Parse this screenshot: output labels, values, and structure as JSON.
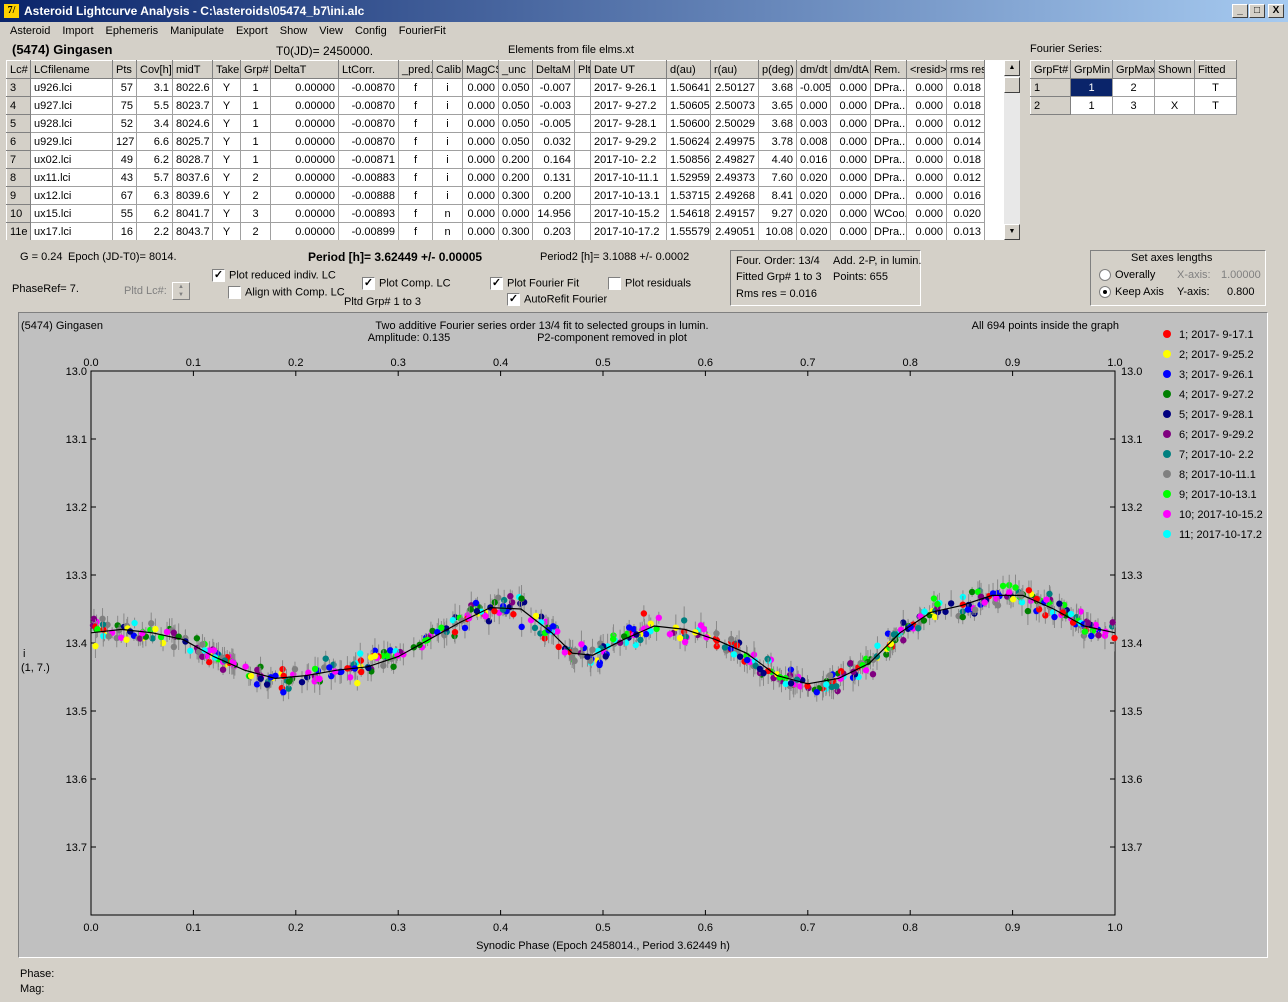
{
  "window": {
    "title": "Asteroid Lightcurve Analysis - C:\\asteroids\\05474_b7\\ini.alc",
    "icon_label": "7/",
    "minimize": "_",
    "maximize": "□",
    "close": "X"
  },
  "menu": [
    "Asteroid",
    "Import",
    "Ephemeris",
    "Manipulate",
    "Export",
    "Show",
    "View",
    "Config",
    "FourierFit"
  ],
  "header": {
    "asteroid": "(5474) Gingasen",
    "t0": "T0(JD)= 2450000.",
    "elements": "Elements from file elms.xt"
  },
  "lc_table": {
    "columns": [
      "Lc#",
      "LCfilename",
      "Pts",
      "Cov[h]",
      "midT",
      "Take",
      "Grp#",
      "DeltaT",
      "LtCorr.",
      "_pred.",
      "Calib.",
      "MagCS",
      "_unc",
      "DeltaM",
      "Plt",
      "Date UT",
      "d(au)",
      "r(au)",
      "p(deg)",
      "dm/dt",
      "dm/dtA",
      "Rem.",
      "<resid>",
      "rms res"
    ],
    "rows": [
      [
        "3",
        "u926.lci",
        "57",
        "3.1",
        "8022.6",
        "Y",
        "1",
        "0.00000",
        "-0.00870",
        "f",
        "i",
        "0.000",
        "0.050",
        "-0.007",
        "",
        "2017- 9-26.1",
        "1.50641",
        "2.50127",
        "3.68",
        "-0.005",
        "0.000",
        "DPra...",
        "0.000",
        "0.018"
      ],
      [
        "4",
        "u927.lci",
        "75",
        "5.5",
        "8023.7",
        "Y",
        "1",
        "0.00000",
        "-0.00870",
        "f",
        "i",
        "0.000",
        "0.050",
        "-0.003",
        "",
        "2017- 9-27.2",
        "1.50605",
        "2.50073",
        "3.65",
        "0.000",
        "0.000",
        "DPra...",
        "0.000",
        "0.018"
      ],
      [
        "5",
        "u928.lci",
        "52",
        "3.4",
        "8024.6",
        "Y",
        "1",
        "0.00000",
        "-0.00870",
        "f",
        "i",
        "0.000",
        "0.050",
        "-0.005",
        "",
        "2017- 9-28.1",
        "1.50600",
        "2.50029",
        "3.68",
        "0.003",
        "0.000",
        "DPra...",
        "0.000",
        "0.012"
      ],
      [
        "6",
        "u929.lci",
        "127",
        "6.6",
        "8025.7",
        "Y",
        "1",
        "0.00000",
        "-0.00870",
        "f",
        "i",
        "0.000",
        "0.050",
        "0.032",
        "",
        "2017- 9-29.2",
        "1.50624",
        "2.49975",
        "3.78",
        "0.008",
        "0.000",
        "DPra...",
        "0.000",
        "0.014"
      ],
      [
        "7",
        "ux02.lci",
        "49",
        "6.2",
        "8028.7",
        "Y",
        "1",
        "0.00000",
        "-0.00871",
        "f",
        "i",
        "0.000",
        "0.200",
        "0.164",
        "",
        "2017-10- 2.2",
        "1.50856",
        "2.49827",
        "4.40",
        "0.016",
        "0.000",
        "DPra...",
        "0.000",
        "0.018"
      ],
      [
        "8",
        "ux11.lci",
        "43",
        "5.7",
        "8037.6",
        "Y",
        "2",
        "0.00000",
        "-0.00883",
        "f",
        "i",
        "0.000",
        "0.200",
        "0.131",
        "",
        "2017-10-11.1",
        "1.52959",
        "2.49373",
        "7.60",
        "0.020",
        "0.000",
        "DPra...",
        "0.000",
        "0.012"
      ],
      [
        "9",
        "ux12.lci",
        "67",
        "6.3",
        "8039.6",
        "Y",
        "2",
        "0.00000",
        "-0.00888",
        "f",
        "i",
        "0.000",
        "0.300",
        "0.200",
        "",
        "2017-10-13.1",
        "1.53715",
        "2.49268",
        "8.41",
        "0.020",
        "0.000",
        "DPra...",
        "0.000",
        "0.016"
      ],
      [
        "10",
        "ux15.lci",
        "55",
        "6.2",
        "8041.7",
        "Y",
        "3",
        "0.00000",
        "-0.00893",
        "f",
        "n",
        "0.000",
        "0.000",
        "14.956",
        "",
        "2017-10-15.2",
        "1.54618",
        "2.49157",
        "9.27",
        "0.020",
        "0.000",
        "WCoo...",
        "0.000",
        "0.020"
      ],
      [
        "11e",
        "ux17.lci",
        "16",
        "2.2",
        "8043.7",
        "Y",
        "2",
        "0.00000",
        "-0.00899",
        "f",
        "n",
        "0.000",
        "0.300",
        "0.203",
        "",
        "2017-10-17.2",
        "1.55579",
        "2.49051",
        "10.08",
        "0.020",
        "0.000",
        "DPra...",
        "0.000",
        "0.013"
      ]
    ]
  },
  "fourier_series": {
    "label": "Fourier Series:",
    "columns": [
      "GrpFt#",
      "GrpMin",
      "GrpMax",
      "Shown",
      "Fitted"
    ],
    "rows": [
      [
        "1",
        "1",
        "2",
        "",
        "T"
      ],
      [
        "2",
        "1",
        "3",
        "X",
        "T"
      ]
    ]
  },
  "controls": {
    "g": "G = 0.24",
    "epoch": "Epoch (JD-T0)= 8014.",
    "phaseref": "PhaseRef= 7.",
    "pltd_lc": "Pltd Lc#:",
    "period": "Period [h]= 3.62449 +/- 0.00005",
    "period2": "Period2 [h]= 3.1088 +/- 0.0002",
    "plot_reduced": "Plot reduced indiv. LC",
    "align_comp": "Align with Comp. LC",
    "plot_comp": "Plot Comp. LC",
    "pltd_grp": "Pltd Grp#  1   to   3",
    "plot_fourier": "Plot Fourier Fit",
    "autorefit": "AutoRefit Fourier",
    "plot_resid": "Plot residuals",
    "four_order": "Four. Order: 13/4",
    "add2p": "Add. 2-P, in lumin.",
    "fitted_grp": "Fitted Grp# 1 to 3",
    "points": "Points: 655",
    "rms": "Rms res     = 0.016",
    "axes_title": "Set axes lengths",
    "overally": "Overally",
    "keep_axis": "Keep Axis",
    "xaxis_label": "X-axis:",
    "xaxis_val": "1.00000",
    "yaxis_label": "Y-axis:",
    "yaxis_val": "0.800"
  },
  "plot": {
    "name": "(5474) Gingasen",
    "subtitle1": "Two additive Fourier series order 13/4 fit to selected groups in lumin.",
    "subtitle2": "Amplitude: 0.135",
    "subtitle3": "P2-component removed in plot",
    "inside": "All 694 points inside the graph",
    "ylabel1": "i",
    "ylabel2": "(1, 7.)"
  },
  "status": {
    "phase": "Phase:",
    "mag": "Mag:"
  },
  "chart_data": {
    "type": "scatter",
    "xlabel": "Synodic Phase (Epoch 2458014., Period 3.62449 h)",
    "xlim": [
      0,
      1
    ],
    "ylim": [
      13.0,
      13.8
    ],
    "y_inverted": true,
    "x_ticks": [
      "0.0",
      "0.1",
      "0.2",
      "0.3",
      "0.4",
      "0.5",
      "0.6",
      "0.7",
      "0.8",
      "0.9",
      "1.0"
    ],
    "y_ticks": [
      "13.0",
      "13.1",
      "13.2",
      "13.3",
      "13.4",
      "13.5",
      "13.6",
      "13.7"
    ],
    "fit_curve": [
      [
        0.0,
        13.385
      ],
      [
        0.03,
        13.38
      ],
      [
        0.06,
        13.385
      ],
      [
        0.09,
        13.395
      ],
      [
        0.12,
        13.42
      ],
      [
        0.15,
        13.44
      ],
      [
        0.18,
        13.452
      ],
      [
        0.21,
        13.448
      ],
      [
        0.24,
        13.44
      ],
      [
        0.27,
        13.435
      ],
      [
        0.3,
        13.42
      ],
      [
        0.33,
        13.395
      ],
      [
        0.36,
        13.37
      ],
      [
        0.39,
        13.348
      ],
      [
        0.42,
        13.35
      ],
      [
        0.45,
        13.385
      ],
      [
        0.47,
        13.415
      ],
      [
        0.49,
        13.418
      ],
      [
        0.52,
        13.395
      ],
      [
        0.55,
        13.375
      ],
      [
        0.58,
        13.38
      ],
      [
        0.61,
        13.395
      ],
      [
        0.64,
        13.415
      ],
      [
        0.67,
        13.448
      ],
      [
        0.7,
        13.46
      ],
      [
        0.73,
        13.452
      ],
      [
        0.76,
        13.43
      ],
      [
        0.79,
        13.385
      ],
      [
        0.82,
        13.355
      ],
      [
        0.85,
        13.345
      ],
      [
        0.88,
        13.33
      ],
      [
        0.91,
        13.33
      ],
      [
        0.94,
        13.35
      ],
      [
        0.97,
        13.375
      ],
      [
        1.0,
        13.385
      ]
    ],
    "legend_position": "top-right",
    "series": [
      {
        "name": "1; 2017- 9-17.1",
        "color": "#ff0000"
      },
      {
        "name": "2; 2017- 9-25.2",
        "color": "#ffff00"
      },
      {
        "name": "3; 2017- 9-26.1",
        "color": "#0000ff"
      },
      {
        "name": "4; 2017- 9-27.2",
        "color": "#008000"
      },
      {
        "name": "5; 2017- 9-28.1",
        "color": "#000080"
      },
      {
        "name": "6; 2017- 9-29.2",
        "color": "#800080"
      },
      {
        "name": "7; 2017-10- 2.2",
        "color": "#008080"
      },
      {
        "name": "8; 2017-10-11.1",
        "color": "#808080"
      },
      {
        "name": "9; 2017-10-13.1",
        "color": "#00ff00"
      },
      {
        "name": "10; 2017-10-15.2",
        "color": "#ff00ff"
      },
      {
        "name": "11; 2017-10-17.2",
        "color": "#00ffff"
      }
    ]
  }
}
